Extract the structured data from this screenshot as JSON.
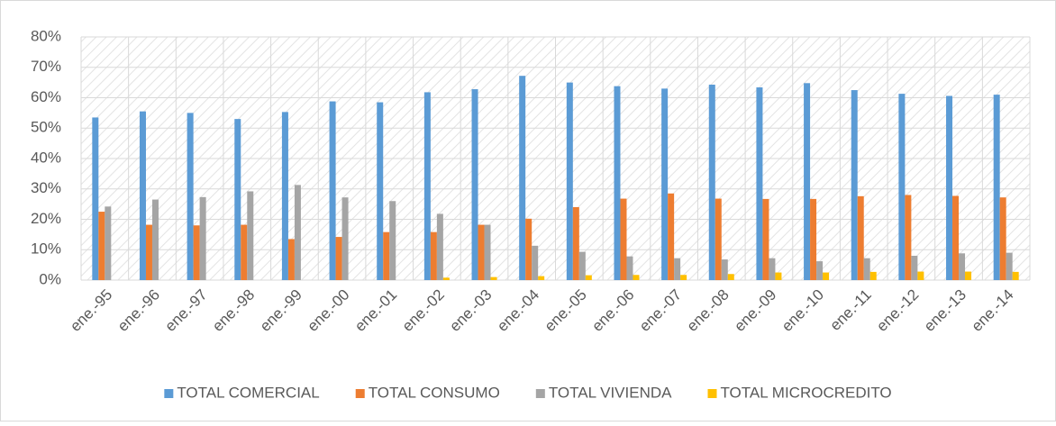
{
  "chart_data": {
    "type": "bar",
    "categories": [
      "ene.-95",
      "ene.-96",
      "ene.-97",
      "ene.-98",
      "ene.-99",
      "ene.-00",
      "ene.-01",
      "ene.-02",
      "ene.-03",
      "ene.-04",
      "ene.-05",
      "ene.-06",
      "ene.-07",
      "ene.-08",
      "ene.-09",
      "ene.-10",
      "ene.-11",
      "ene.-12",
      "ene.-13",
      "ene.-14"
    ],
    "series": [
      {
        "name": "TOTAL COMERCIAL",
        "color": "#5b9bd5",
        "values": [
          53.5,
          55.5,
          55,
          53,
          55.3,
          58.8,
          58.5,
          61.8,
          62.8,
          67.2,
          65,
          63.8,
          63,
          64.3,
          63.4,
          64.8,
          62.5,
          61.3,
          60.6,
          61
        ]
      },
      {
        "name": "TOTAL CONSUMO",
        "color": "#ed7d31",
        "values": [
          22.5,
          18.2,
          18,
          18.2,
          13.5,
          14.2,
          15.8,
          15.8,
          18.2,
          20.2,
          24,
          26.8,
          28.5,
          26.8,
          26.7,
          26.7,
          27.6,
          28,
          27.7,
          27.2
        ]
      },
      {
        "name": "TOTAL VIVIENDA",
        "color": "#a5a5a5",
        "values": [
          24.2,
          26.5,
          27.3,
          29.2,
          31.3,
          27.2,
          26,
          21.8,
          18.2,
          11.3,
          9.3,
          7.8,
          7.2,
          6.8,
          7.2,
          6.2,
          7.2,
          8,
          8.8,
          9
        ]
      },
      {
        "name": "TOTAL MICROCREDITO",
        "color": "#ffc000",
        "values": [
          0,
          0,
          0,
          0,
          0,
          0,
          0,
          0.8,
          1,
          1.3,
          1.6,
          1.7,
          1.7,
          2,
          2.5,
          2.5,
          2.7,
          2.8,
          2.8,
          2.7
        ]
      }
    ],
    "ylim": [
      0,
      80
    ],
    "yticks": [
      {
        "value": 0,
        "label": "0%"
      },
      {
        "value": 10,
        "label": "10%"
      },
      {
        "value": 20,
        "label": "20%"
      },
      {
        "value": 30,
        "label": "30%"
      },
      {
        "value": 40,
        "label": "40%"
      },
      {
        "value": 50,
        "label": "50%"
      },
      {
        "value": 60,
        "label": "60%"
      },
      {
        "value": 70,
        "label": "70%"
      },
      {
        "value": 80,
        "label": "80%"
      }
    ],
    "grid": true,
    "legend": "bottom"
  }
}
